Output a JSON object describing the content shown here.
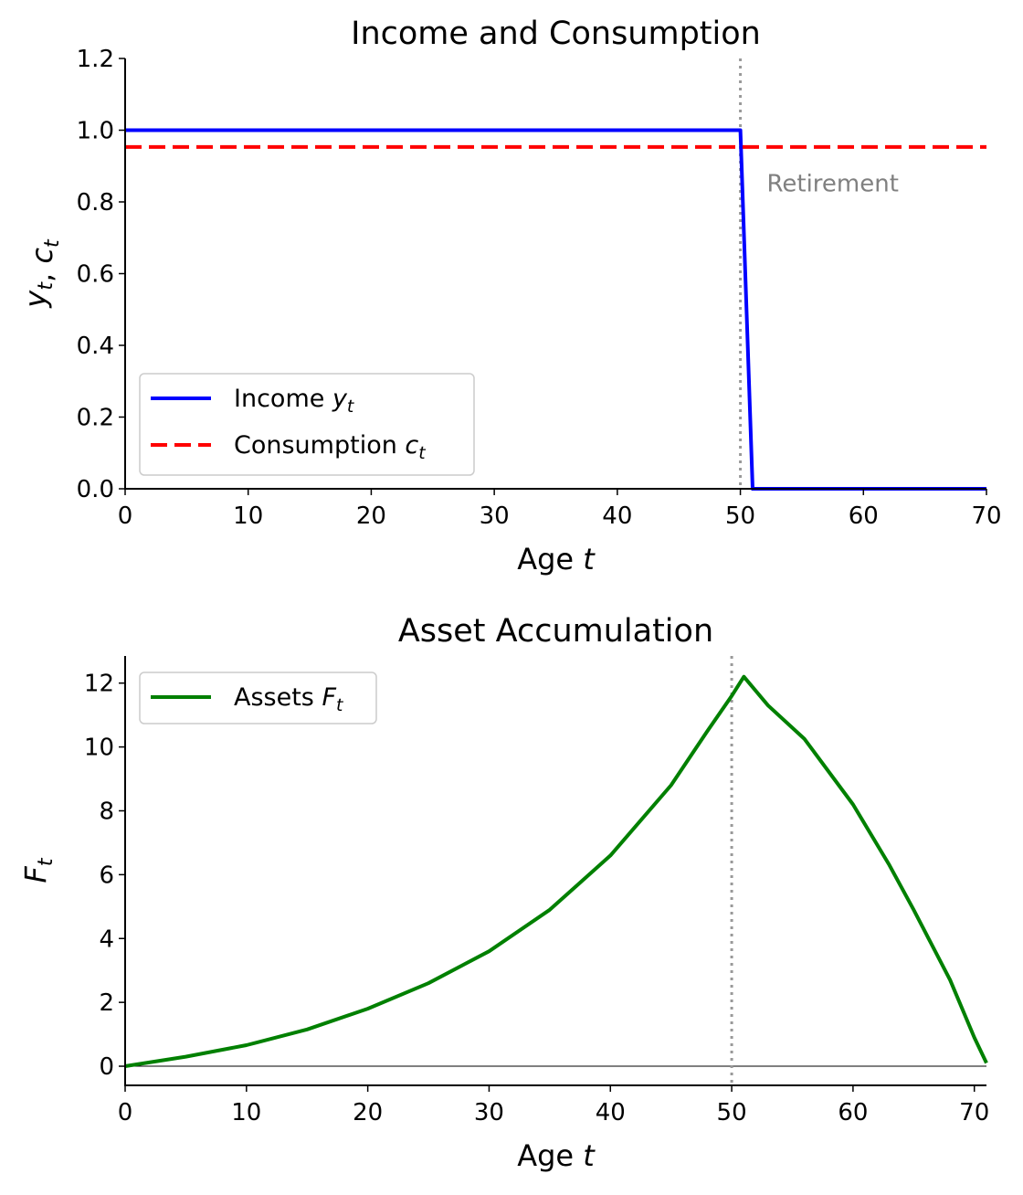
{
  "chart_data": [
    {
      "type": "line",
      "title": "Income and Consumption",
      "xlabel": "Age t",
      "ylabel": "y_t, c_t",
      "xlim": [
        0,
        70
      ],
      "ylim": [
        0,
        1.2
      ],
      "xticks": [
        0,
        10,
        20,
        30,
        40,
        50,
        60,
        70
      ],
      "yticks": [
        "0.0",
        "0.2",
        "0.4",
        "0.6",
        "0.8",
        "1.0",
        "1.2"
      ],
      "legend_position": "lower-left",
      "vline": {
        "x": 50,
        "style": "dotted",
        "color": "#999999"
      },
      "annotation": {
        "text": "Retirement",
        "x": 52,
        "y": 0.85,
        "color": "#808080"
      },
      "series": [
        {
          "name": "Income",
          "sub": "y",
          "subscript": "t",
          "color": "#0000ff",
          "style": "solid",
          "x": [
            0,
            50,
            51,
            70
          ],
          "y": [
            1,
            1,
            0,
            0
          ]
        },
        {
          "name": "Consumption",
          "sub": "c",
          "subscript": "t",
          "color": "#ff0000",
          "style": "dashed",
          "x": [
            0,
            70
          ],
          "y": [
            0.953,
            0.953
          ]
        }
      ]
    },
    {
      "type": "line",
      "title": "Asset Accumulation",
      "xlabel": "Age t",
      "ylabel": "F_t",
      "xlim": [
        0,
        71
      ],
      "ylim": [
        -0.6,
        12.85
      ],
      "xticks": [
        0,
        10,
        20,
        30,
        40,
        50,
        60,
        70
      ],
      "yticks": [
        0,
        2,
        4,
        6,
        8,
        10,
        12
      ],
      "legend_position": "upper-left",
      "vline": {
        "x": 50,
        "style": "dotted",
        "color": "#999999"
      },
      "hline": {
        "y": 0,
        "color": "#000000"
      },
      "series": [
        {
          "name": "Assets",
          "sub": "F",
          "subscript": "t",
          "color": "#008000",
          "style": "solid",
          "x": [
            0,
            5,
            10,
            15,
            20,
            25,
            30,
            35,
            40,
            45,
            48,
            50,
            51,
            53,
            56,
            60,
            63,
            65,
            68,
            70,
            71
          ],
          "y": [
            0,
            0.3,
            0.66,
            1.15,
            1.8,
            2.6,
            3.6,
            4.9,
            6.6,
            8.8,
            10.5,
            11.6,
            12.2,
            11.3,
            10.25,
            8.2,
            6.3,
            4.9,
            2.7,
            0.9,
            0.1
          ]
        }
      ]
    }
  ]
}
